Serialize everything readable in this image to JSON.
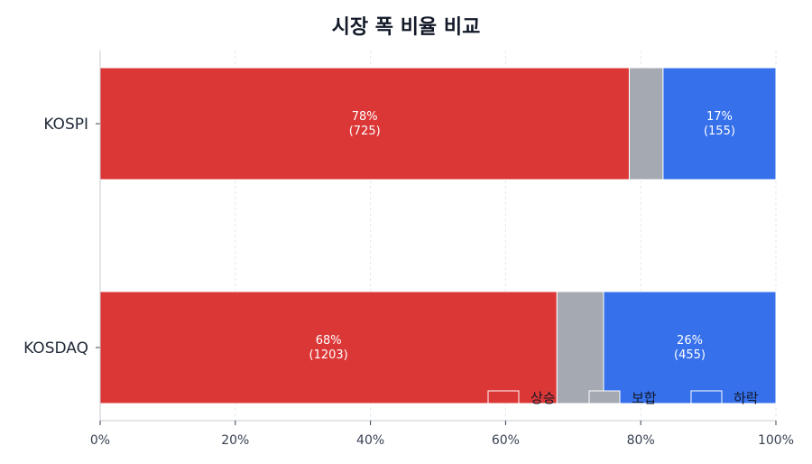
{
  "chart_data": {
    "type": "bar",
    "orientation": "horizontal",
    "stacked": true,
    "title": "시장 폭 비율 비교",
    "xlabel": "",
    "ylabel": "",
    "xlim": [
      0,
      100
    ],
    "x_ticks": [
      "0%",
      "20%",
      "40%",
      "60%",
      "80%",
      "100%"
    ],
    "categories": [
      "KOSPI",
      "KOSDAQ"
    ],
    "series": [
      {
        "name": "상승",
        "color": "#dc3737",
        "values": [
          78.3,
          67.6
        ],
        "labels": [
          "78%\n(725)",
          "68%\n(1203)"
        ]
      },
      {
        "name": "보합",
        "color": "#a4a9b2",
        "values": [
          5.0,
          6.9
        ],
        "labels": [
          "",
          ""
        ]
      },
      {
        "name": "하락",
        "color": "#3670eb",
        "values": [
          16.7,
          25.5
        ],
        "labels": [
          "17%\n(155)",
          "26%\n(455)"
        ]
      }
    ],
    "grid": true,
    "legend_position": "bottom-right"
  }
}
